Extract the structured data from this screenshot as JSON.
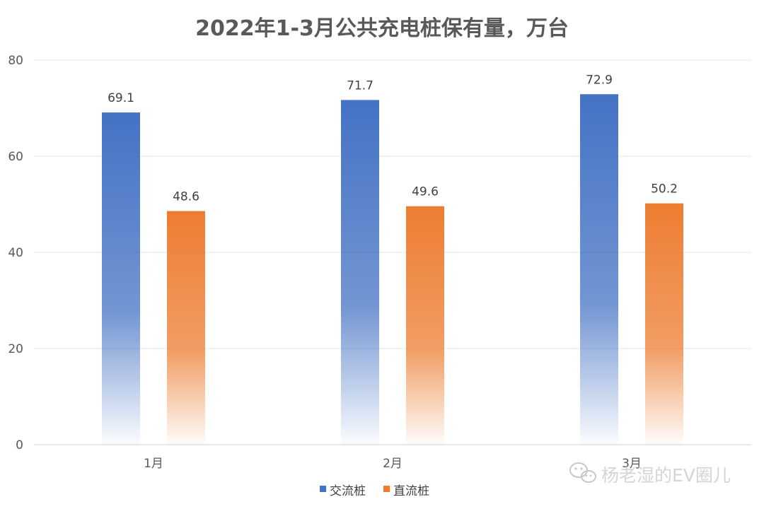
{
  "chart_data": {
    "type": "bar",
    "title": "2022年1-3月公共充电桩保有量，万台",
    "xlabel": "",
    "ylabel": "",
    "categories": [
      "1月",
      "2月",
      "3月"
    ],
    "series": [
      {
        "name": "交流桩",
        "values": [
          69.1,
          71.7,
          72.9
        ],
        "color": "#4472C4"
      },
      {
        "name": "直流桩",
        "values": [
          48.6,
          49.6,
          50.2
        ],
        "color": "#ED7D31"
      }
    ],
    "ylim": [
      0,
      80
    ],
    "yticks": [
      0,
      20,
      40,
      60,
      80
    ],
    "grid": true,
    "legend_position": "bottom",
    "bar_fill": "vertical gradient fading to white at the base"
  },
  "watermark": {
    "text": "杨老湿的EV圈儿",
    "icon": "wechat-icon"
  }
}
